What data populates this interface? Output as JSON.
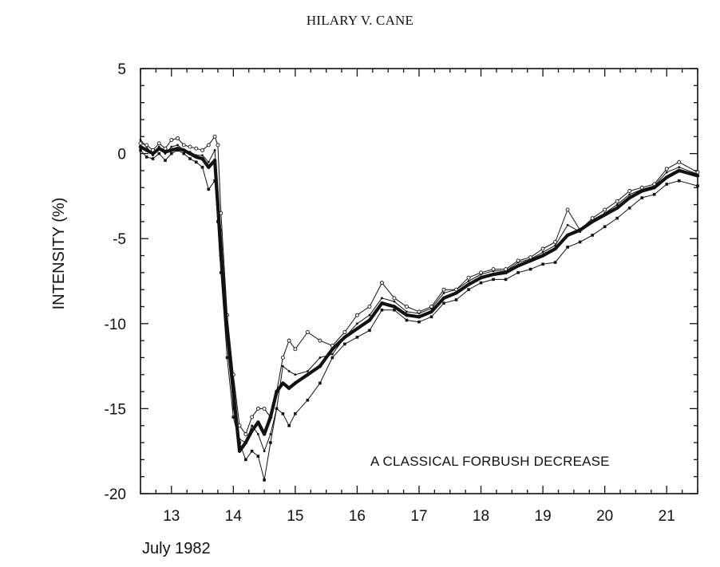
{
  "header": {
    "title": "HILARY V. CANE"
  },
  "chart_data": {
    "type": "line",
    "title": "",
    "xlabel": "July 1982",
    "ylabel": "INTENSITY (%)",
    "annotation": "A CLASSICAL FORBUSH DECREASE",
    "xlim": [
      12.5,
      21.5
    ],
    "ylim": [
      -20,
      5
    ],
    "x_ticks": [
      13,
      14,
      15,
      16,
      17,
      18,
      19,
      20,
      21
    ],
    "x_tick_labels": [
      "13",
      "14",
      "15",
      "16",
      "17",
      "18",
      "19",
      "20",
      "21"
    ],
    "y_ticks": [
      5,
      0,
      -5,
      -10,
      -15,
      -20
    ],
    "y_tick_labels": [
      "5",
      "0",
      "-5",
      "-10",
      "-15",
      "-20"
    ],
    "grid": false,
    "legend": "none",
    "series": [
      {
        "style": "thick",
        "x": [
          12.5,
          12.6,
          12.7,
          12.8,
          12.9,
          13.0,
          13.1,
          13.2,
          13.3,
          13.4,
          13.5,
          13.6,
          13.7,
          13.75,
          13.8,
          13.9,
          14.0,
          14.1,
          14.2,
          14.3,
          14.4,
          14.5,
          14.6,
          14.7,
          14.8,
          14.9,
          15.0,
          15.2,
          15.4,
          15.6,
          15.8,
          16.0,
          16.2,
          16.4,
          16.6,
          16.8,
          17.0,
          17.2,
          17.4,
          17.6,
          17.8,
          18.0,
          18.2,
          18.4,
          18.6,
          18.8,
          19.0,
          19.2,
          19.4,
          19.6,
          19.8,
          20.0,
          20.2,
          20.4,
          20.6,
          20.8,
          21.0,
          21.2,
          21.5
        ],
        "y": [
          0.4,
          0.2,
          0.0,
          0.3,
          0.1,
          0.2,
          0.3,
          0.2,
          0.0,
          -0.2,
          -0.3,
          -0.8,
          -0.4,
          -3.0,
          -6.0,
          -10.5,
          -14.0,
          -17.5,
          -17.0,
          -16.3,
          -15.8,
          -16.5,
          -15.5,
          -14.0,
          -13.5,
          -13.8,
          -13.5,
          -13.0,
          -12.5,
          -11.5,
          -10.8,
          -10.3,
          -9.8,
          -8.8,
          -9.0,
          -9.5,
          -9.6,
          -9.3,
          -8.5,
          -8.2,
          -7.7,
          -7.3,
          -7.1,
          -7.0,
          -6.6,
          -6.3,
          -6.0,
          -5.6,
          -4.8,
          -4.5,
          -4.0,
          -3.6,
          -3.2,
          -2.6,
          -2.2,
          -2.0,
          -1.4,
          -1.0,
          -1.3
        ]
      },
      {
        "style": "thin-open",
        "x": [
          12.5,
          12.6,
          12.7,
          12.8,
          12.9,
          13.0,
          13.1,
          13.2,
          13.3,
          13.4,
          13.5,
          13.6,
          13.7,
          13.75,
          13.8,
          13.9,
          14.0,
          14.1,
          14.2,
          14.3,
          14.4,
          14.5,
          14.6,
          14.7,
          14.8,
          14.9,
          15.0,
          15.2,
          15.4,
          15.6,
          15.8,
          16.0,
          16.2,
          16.4,
          16.6,
          16.8,
          17.0,
          17.2,
          17.4,
          17.6,
          17.8,
          18.0,
          18.2,
          18.4,
          18.6,
          18.8,
          19.0,
          19.2,
          19.4,
          19.6,
          19.8,
          20.0,
          20.2,
          20.4,
          20.6,
          20.8,
          21.0,
          21.2,
          21.5
        ],
        "y": [
          0.6,
          0.5,
          0.2,
          0.6,
          0.3,
          0.8,
          0.9,
          0.5,
          0.4,
          0.3,
          0.2,
          0.5,
          1.0,
          0.5,
          -3.5,
          -9.5,
          -13.0,
          -16.0,
          -16.5,
          -15.5,
          -15.0,
          -15.0,
          -15.5,
          -14.0,
          -12.0,
          -11.0,
          -11.5,
          -10.5,
          -11.0,
          -11.3,
          -10.5,
          -9.5,
          -9.0,
          -7.6,
          -8.5,
          -9.0,
          -9.3,
          -9.0,
          -8.0,
          -8.0,
          -7.3,
          -7.0,
          -6.8,
          -6.8,
          -6.3,
          -6.1,
          -5.6,
          -5.2,
          -3.3,
          -4.5,
          -3.8,
          -3.3,
          -2.8,
          -2.2,
          -2.0,
          -1.8,
          -0.9,
          -0.5,
          -1.1
        ]
      },
      {
        "style": "thin-filled",
        "x": [
          12.5,
          12.6,
          12.7,
          12.8,
          12.9,
          13.0,
          13.1,
          13.2,
          13.3,
          13.4,
          13.5,
          13.6,
          13.7,
          13.75,
          13.8,
          13.9,
          14.0,
          14.1,
          14.2,
          14.3,
          14.4,
          14.5,
          14.6,
          14.7,
          14.8,
          14.9,
          15.0,
          15.2,
          15.4,
          15.6,
          15.8,
          16.0,
          16.2,
          16.4,
          16.6,
          16.8,
          17.0,
          17.2,
          17.4,
          17.6,
          17.8,
          18.0,
          18.2,
          18.4,
          18.6,
          18.8,
          19.0,
          19.2,
          19.4,
          19.6,
          19.8,
          20.0,
          20.2,
          20.4,
          20.6,
          20.8,
          21.0,
          21.2,
          21.5
        ],
        "y": [
          0.2,
          -0.2,
          -0.3,
          0.0,
          -0.4,
          0.0,
          0.2,
          0.0,
          -0.3,
          -0.5,
          -0.8,
          -2.1,
          -1.6,
          -4.0,
          -7.0,
          -12.0,
          -15.5,
          -17.0,
          -18.0,
          -17.5,
          -17.8,
          -19.2,
          -17.0,
          -15.0,
          -15.3,
          -16.0,
          -15.3,
          -14.5,
          -13.5,
          -12.0,
          -11.2,
          -10.8,
          -10.4,
          -9.2,
          -9.2,
          -9.8,
          -9.9,
          -9.6,
          -8.8,
          -8.6,
          -8.0,
          -7.6,
          -7.4,
          -7.4,
          -7.0,
          -6.8,
          -6.5,
          -6.4,
          -5.5,
          -5.2,
          -4.8,
          -4.3,
          -3.8,
          -3.2,
          -2.6,
          -2.4,
          -1.8,
          -1.6,
          -1.9
        ]
      },
      {
        "style": "thin-dot",
        "x": [
          12.5,
          12.6,
          12.7,
          12.8,
          12.9,
          13.0,
          13.1,
          13.2,
          13.3,
          13.4,
          13.5,
          13.6,
          13.7,
          13.75,
          13.8,
          13.9,
          14.0,
          14.1,
          14.2,
          14.3,
          14.4,
          14.5,
          14.6,
          14.7,
          14.8,
          14.9,
          15.0,
          15.2,
          15.4,
          15.6,
          15.8,
          16.0,
          16.2,
          16.4,
          16.6,
          16.8,
          17.0,
          17.2,
          17.4,
          17.6,
          17.8,
          18.0,
          18.2,
          18.4,
          18.6,
          18.8,
          19.0,
          19.2,
          19.4,
          19.6,
          19.8,
          20.0,
          20.2,
          20.4,
          20.6,
          20.8,
          21.0,
          21.2,
          21.5
        ],
        "y": [
          0.8,
          0.4,
          -0.1,
          0.4,
          0.0,
          0.4,
          0.5,
          0.2,
          0.1,
          -0.1,
          -0.1,
          -0.5,
          0.2,
          -2.5,
          -4.5,
          -10.0,
          -15.0,
          -16.8,
          -17.0,
          -16.0,
          -16.5,
          -17.5,
          -16.5,
          -15.0,
          -12.5,
          -12.8,
          -13.0,
          -12.8,
          -12.0,
          -11.8,
          -10.8,
          -10.0,
          -9.5,
          -8.5,
          -8.7,
          -9.3,
          -9.4,
          -9.1,
          -8.2,
          -8.0,
          -7.5,
          -7.1,
          -6.9,
          -6.9,
          -6.4,
          -6.2,
          -5.8,
          -5.4,
          -4.2,
          -4.6,
          -3.9,
          -3.5,
          -3.0,
          -2.4,
          -2.1,
          -1.9,
          -1.1,
          -0.8,
          -1.2
        ]
      }
    ]
  }
}
